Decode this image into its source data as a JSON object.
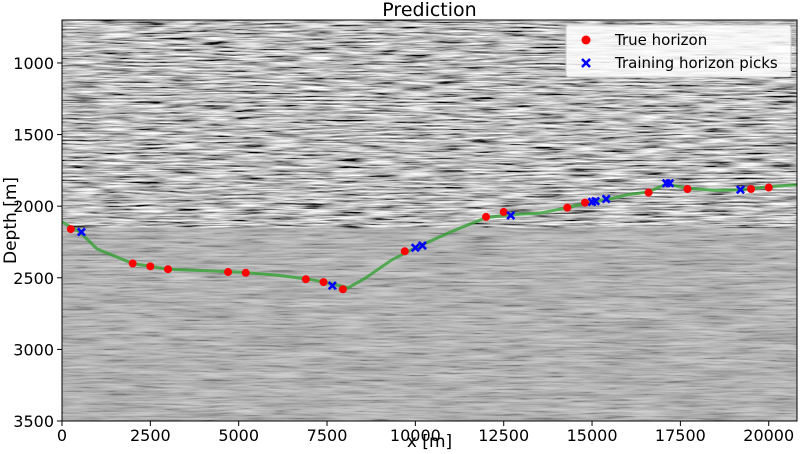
{
  "chart_data": {
    "type": "scatter",
    "title": "Prediction",
    "xlabel": "x [m]",
    "ylabel": "Depth [m]",
    "xlim": [
      0,
      20800
    ],
    "ylim": [
      3500,
      700
    ],
    "y_inverted": true,
    "x_ticks": [
      0,
      2500,
      5000,
      7500,
      10000,
      12500,
      15000,
      17500,
      20000
    ],
    "y_ticks": [
      1000,
      1500,
      2000,
      2500,
      3000,
      3500
    ],
    "background": "grayscale seismic section",
    "grid": false,
    "legend_position": "top-right",
    "series": [
      {
        "name": "True horizon",
        "marker": "circle",
        "color": "#ff0000",
        "points": [
          [
            250,
            2160
          ],
          [
            2000,
            2400
          ],
          [
            2500,
            2420
          ],
          [
            3000,
            2440
          ],
          [
            4700,
            2460
          ],
          [
            5200,
            2465
          ],
          [
            6900,
            2510
          ],
          [
            7400,
            2530
          ],
          [
            7950,
            2580
          ],
          [
            9700,
            2315
          ],
          [
            12000,
            2075
          ],
          [
            12500,
            2040
          ],
          [
            14300,
            2010
          ],
          [
            14800,
            1975
          ],
          [
            16600,
            1905
          ],
          [
            17700,
            1880
          ],
          [
            19500,
            1880
          ],
          [
            20000,
            1870
          ]
        ]
      },
      {
        "name": "Training horizon picks",
        "marker": "x",
        "color": "#0000ff",
        "points": [
          [
            550,
            2180
          ],
          [
            7650,
            2555
          ],
          [
            10000,
            2290
          ],
          [
            10200,
            2275
          ],
          [
            12700,
            2065
          ],
          [
            15000,
            1970
          ],
          [
            15100,
            1965
          ],
          [
            15400,
            1950
          ],
          [
            17100,
            1840
          ],
          [
            17200,
            1840
          ],
          [
            19200,
            1885
          ]
        ]
      },
      {
        "name": "",
        "type": "line",
        "color": "#2ca02c",
        "points": [
          [
            0,
            2110
          ],
          [
            500,
            2180
          ],
          [
            1000,
            2300
          ],
          [
            2000,
            2400
          ],
          [
            3000,
            2440
          ],
          [
            4000,
            2450
          ],
          [
            5000,
            2460
          ],
          [
            6000,
            2480
          ],
          [
            7000,
            2510
          ],
          [
            7600,
            2540
          ],
          [
            8100,
            2570
          ],
          [
            8600,
            2500
          ],
          [
            9300,
            2380
          ],
          [
            10000,
            2290
          ],
          [
            11000,
            2180
          ],
          [
            12000,
            2080
          ],
          [
            12700,
            2060
          ],
          [
            13500,
            2050
          ],
          [
            14300,
            2010
          ],
          [
            15000,
            1970
          ],
          [
            15500,
            1950
          ],
          [
            16000,
            1920
          ],
          [
            16600,
            1900
          ],
          [
            17100,
            1845
          ],
          [
            17700,
            1875
          ],
          [
            18500,
            1890
          ],
          [
            19200,
            1885
          ],
          [
            20000,
            1865
          ],
          [
            20800,
            1850
          ]
        ]
      }
    ]
  }
}
